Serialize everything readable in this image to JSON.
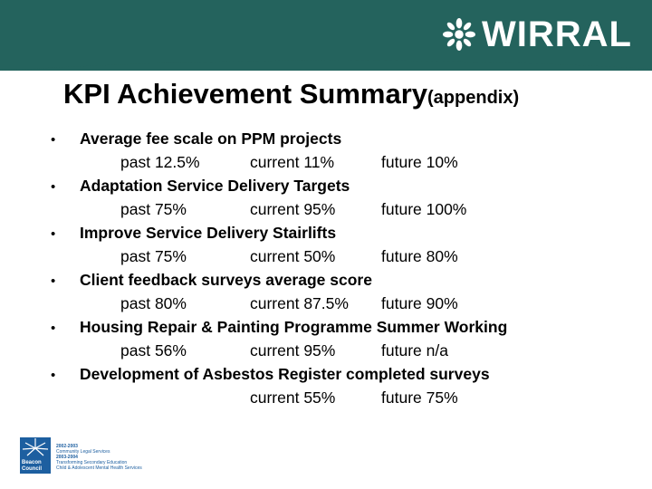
{
  "brand": {
    "name": "WIRRAL",
    "mark_icon": "wirral-flower-icon",
    "header_color": "#24635d"
  },
  "title": {
    "main": "KPI Achievement Summary",
    "sub": "(appendix)"
  },
  "items": [
    {
      "label": "Average fee scale on PPM projects",
      "past": "past 12.5%",
      "current": "current 11%",
      "future": "future 10%"
    },
    {
      "label": "Adaptation Service Delivery Targets",
      "past": "past 75%",
      "current": "current 95%",
      "future": "future 100%"
    },
    {
      "label": "Improve Service Delivery Stairlifts",
      "past": "past 75%",
      "current": "current 50%",
      "future": "future 80%"
    },
    {
      "label": "Client feedback surveys average score",
      "past": "past 80%",
      "current": "current 87.5%",
      "future": "future 90%"
    },
    {
      "label": "Housing Repair & Painting Programme Summer Working",
      "past": "past 56%",
      "current": "current 95%",
      "future": "future n/a"
    },
    {
      "label": "Development of Asbestos Register completed surveys",
      "past": "",
      "current": "current 55%",
      "future": "future 75%"
    }
  ],
  "footer": {
    "badge_text": "Beacon Council",
    "badge_icon": "beacon-star-icon",
    "lines": [
      {
        "year": "2002-2003",
        "text": "Community Legal Services"
      },
      {
        "year": "2003-2004",
        "text": "Transforming Secondary Education"
      },
      {
        "year": "",
        "text": "Child & Adolescent Mental Health Services"
      }
    ]
  }
}
